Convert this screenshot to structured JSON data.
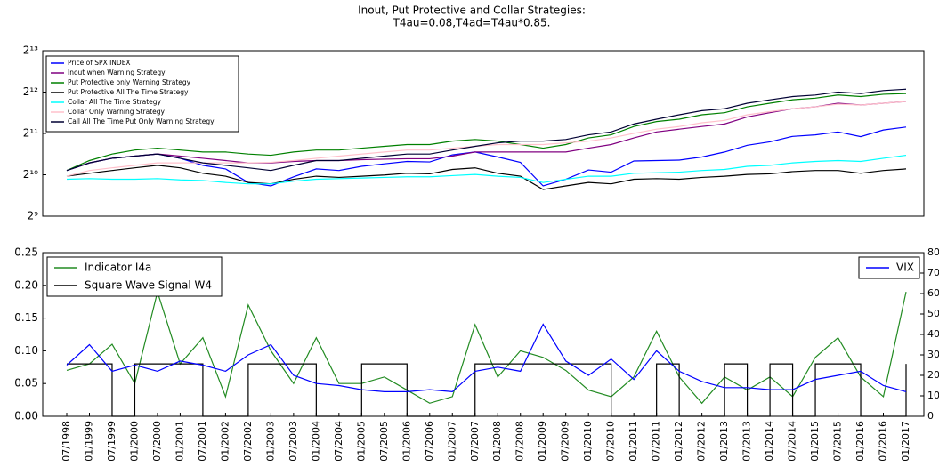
{
  "chart_data": [
    {
      "type": "line",
      "title": [
        "Inout, Put Protective and Collar Strategies:",
        "T4au=0.08,T4ad=T4au*0.85."
      ],
      "log_base": 2,
      "ylim": [
        512,
        8192
      ],
      "yticks": [
        {
          "value": 512,
          "label": "2⁹"
        },
        {
          "value": 1024,
          "label": "2¹⁰"
        },
        {
          "value": 2048,
          "label": "2¹¹"
        },
        {
          "value": 4096,
          "label": "2¹²"
        },
        {
          "value": 8192,
          "label": "2¹³"
        }
      ],
      "legend": "upper left",
      "series": [
        {
          "name": "Price of SPX INDEX",
          "color": "#0000ff",
          "values": [
            1100,
            1250,
            1350,
            1400,
            1450,
            1350,
            1200,
            1130,
            900,
            850,
            990,
            1130,
            1100,
            1180,
            1230,
            1280,
            1270,
            1430,
            1500,
            1380,
            1260,
            850,
            950,
            1110,
            1070,
            1290,
            1300,
            1310,
            1380,
            1500,
            1680,
            1780,
            1950,
            2000,
            2100,
            1940,
            2170,
            2280
          ]
        },
        {
          "name": "Inout when Warning Strategy",
          "color": "#800080",
          "values": [
            1100,
            1250,
            1350,
            1400,
            1450,
            1400,
            1350,
            1300,
            1250,
            1250,
            1280,
            1300,
            1300,
            1320,
            1330,
            1340,
            1340,
            1400,
            1500,
            1500,
            1500,
            1500,
            1500,
            1600,
            1700,
            1900,
            2100,
            2200,
            2300,
            2400,
            2700,
            2900,
            3100,
            3200,
            3400,
            3300,
            3400,
            3500
          ]
        },
        {
          "name": "Put Protective only Warning Strategy",
          "color": "#008000",
          "values": [
            1100,
            1300,
            1450,
            1550,
            1600,
            1550,
            1500,
            1500,
            1450,
            1420,
            1500,
            1550,
            1550,
            1600,
            1650,
            1700,
            1700,
            1800,
            1850,
            1800,
            1700,
            1600,
            1700,
            1900,
            2000,
            2300,
            2500,
            2600,
            2800,
            2900,
            3200,
            3400,
            3600,
            3700,
            3900,
            3800,
            3950,
            4000
          ]
        },
        {
          "name": "Put Protective All The Time Strategy",
          "color": "#000000",
          "values": [
            1000,
            1050,
            1100,
            1150,
            1200,
            1150,
            1050,
            1000,
            900,
            880,
            950,
            1000,
            980,
            1000,
            1020,
            1050,
            1040,
            1120,
            1150,
            1050,
            1000,
            800,
            850,
            900,
            880,
            950,
            960,
            950,
            980,
            1000,
            1030,
            1040,
            1080,
            1100,
            1100,
            1050,
            1100,
            1130
          ]
        },
        {
          "name": "Collar All The Time Strategy",
          "color": "#00ffff",
          "values": [
            950,
            960,
            950,
            950,
            960,
            940,
            930,
            900,
            880,
            880,
            920,
            950,
            960,
            970,
            980,
            990,
            990,
            1010,
            1030,
            1000,
            980,
            900,
            950,
            1000,
            1000,
            1050,
            1060,
            1070,
            1100,
            1120,
            1180,
            1200,
            1250,
            1280,
            1300,
            1280,
            1350,
            1420
          ]
        },
        {
          "name": "Collar Only Warning Strategy",
          "color": "#ffc0cb",
          "values": [
            1000,
            1100,
            1150,
            1200,
            1250,
            1250,
            1250,
            1250,
            1250,
            1260,
            1300,
            1350,
            1400,
            1450,
            1500,
            1550,
            1550,
            1600,
            1650,
            1700,
            1700,
            1700,
            1750,
            1800,
            1900,
            2050,
            2200,
            2300,
            2450,
            2550,
            2800,
            2950,
            3100,
            3200,
            3350,
            3300,
            3400,
            3500
          ]
        },
        {
          "name": "Call All The Time Put Only Warning Strategy",
          "color": "#000033",
          "values": [
            1100,
            1250,
            1350,
            1400,
            1450,
            1350,
            1250,
            1200,
            1150,
            1100,
            1200,
            1300,
            1300,
            1350,
            1400,
            1450,
            1450,
            1550,
            1650,
            1750,
            1800,
            1800,
            1850,
            2000,
            2100,
            2400,
            2600,
            2800,
            3000,
            3100,
            3400,
            3600,
            3800,
            3900,
            4100,
            4000,
            4200,
            4300
          ]
        }
      ]
    },
    {
      "type": "line",
      "x": [
        "07/1998",
        "01/1999",
        "07/1999",
        "01/2000",
        "07/2000",
        "01/2001",
        "07/2001",
        "01/2002",
        "07/2002",
        "01/2003",
        "07/2003",
        "01/2004",
        "07/2004",
        "01/2005",
        "07/2005",
        "01/2006",
        "07/2006",
        "01/2007",
        "07/2007",
        "01/2008",
        "07/2008",
        "01/2009",
        "07/2009",
        "01/2010",
        "07/2010",
        "01/2011",
        "07/2011",
        "01/2012",
        "07/2012",
        "01/2013",
        "07/2013",
        "01/2014",
        "07/2014",
        "01/2015",
        "07/2015",
        "01/2016",
        "07/2016",
        "01/2017"
      ],
      "ylim": [
        0,
        0.25
      ],
      "yticks": [
        {
          "value": 0,
          "label": "0.00"
        },
        {
          "value": 0.05,
          "label": "0.05"
        },
        {
          "value": 0.1,
          "label": "0.10"
        },
        {
          "value": 0.15,
          "label": "0.15"
        },
        {
          "value": 0.2,
          "label": "0.20"
        },
        {
          "value": 0.25,
          "label": "0.25"
        }
      ],
      "y2lim": [
        0,
        80
      ],
      "y2ticks": [
        0,
        10,
        20,
        30,
        40,
        50,
        60,
        70,
        80
      ],
      "series": [
        {
          "name": "Indicator I4a",
          "color": "#228b22",
          "values": [
            0.07,
            0.08,
            0.11,
            0.05,
            0.19,
            0.08,
            0.12,
            0.03,
            0.17,
            0.1,
            0.05,
            0.12,
            0.05,
            0.05,
            0.06,
            0.04,
            0.02,
            0.03,
            0.14,
            0.06,
            0.1,
            0.09,
            0.07,
            0.04,
            0.03,
            0.06,
            0.13,
            0.06,
            0.02,
            0.06,
            0.04,
            0.06,
            0.03,
            0.09,
            0.12,
            0.06,
            0.03,
            0.19
          ]
        },
        {
          "name": "Square Wave Signal W4",
          "color": "#000000",
          "step": true,
          "values": [
            0.08,
            0.08,
            0,
            0.08,
            0.08,
            0.08,
            0,
            0,
            0.08,
            0.08,
            0.08,
            0,
            0,
            0.08,
            0.08,
            0,
            0,
            0,
            0.08,
            0.08,
            0.08,
            0.08,
            0.08,
            0.08,
            0,
            0,
            0.08,
            0,
            0,
            0.08,
            0,
            0.08,
            0,
            0.08,
            0.08,
            0,
            0,
            0.08
          ]
        },
        {
          "name": "VIX",
          "color": "#0000ff",
          "axis": "y2",
          "values": [
            25,
            35,
            22,
            25,
            22,
            27,
            25,
            22,
            30,
            35,
            20,
            16,
            15,
            13,
            12,
            12,
            13,
            12,
            22,
            24,
            22,
            45,
            27,
            20,
            28,
            18,
            32,
            22,
            17,
            14,
            14,
            13,
            13,
            18,
            20,
            22,
            15,
            12
          ]
        }
      ]
    }
  ]
}
